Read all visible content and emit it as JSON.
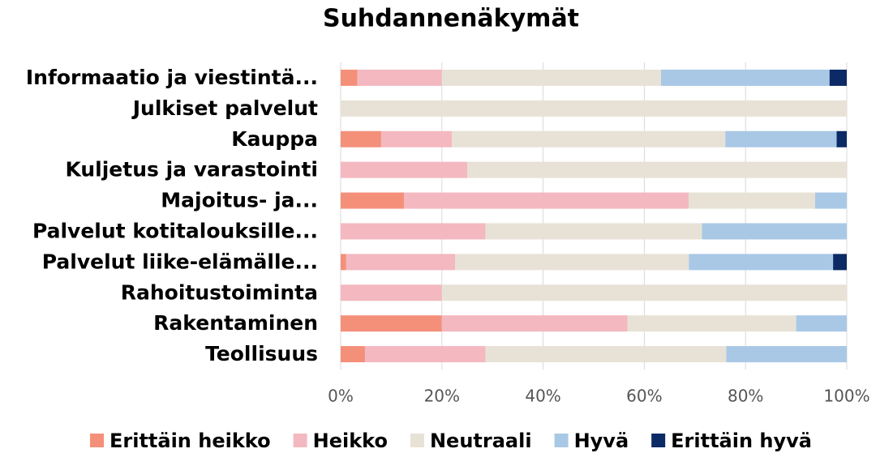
{
  "chart_data": {
    "type": "stacked_barh",
    "title": "Suhdannenäkymät",
    "categories": [
      "Informaatio ja viestintä...",
      "Julkiset palvelut",
      "Kauppa",
      "Kuljetus ja varastointi",
      "Majoitus- ja...",
      "Palvelut kotitalouksille...",
      "Palvelut liike-elämälle...",
      "Rahoitustoiminta",
      "Rakentaminen",
      "Teollisuus"
    ],
    "series": [
      {
        "name": "Erittäin heikko",
        "color": "#f4907a",
        "values": [
          3.3,
          0,
          8,
          0,
          12.5,
          0,
          1.1,
          0,
          20,
          4.8
        ]
      },
      {
        "name": "Heikko",
        "color": "#f4b8c0",
        "values": [
          16.7,
          0,
          14,
          25,
          56.25,
          28.6,
          21.5,
          20,
          36.7,
          23.8
        ]
      },
      {
        "name": "Neutraali",
        "color": "#e8e2d6",
        "values": [
          43.3,
          100,
          54,
          75,
          25,
          42.8,
          46.2,
          80,
          33.3,
          47.6
        ]
      },
      {
        "name": "Hyvä",
        "color": "#a9c8e6",
        "values": [
          33.3,
          0,
          22,
          0,
          6.25,
          28.6,
          28.5,
          0,
          10,
          23.8
        ]
      },
      {
        "name": "Erittäin hyvä",
        "color": "#0c2a66",
        "values": [
          3.4,
          0,
          2,
          0,
          0,
          0,
          2.7,
          0,
          0,
          0
        ]
      }
    ],
    "xlim": [
      0,
      100
    ],
    "xticks": [
      {
        "value": 0,
        "label": "0%"
      },
      {
        "value": 20,
        "label": "20%"
      },
      {
        "value": 40,
        "label": "40%"
      },
      {
        "value": 60,
        "label": "60%"
      },
      {
        "value": 80,
        "label": "80%"
      },
      {
        "value": 100,
        "label": "100%"
      }
    ],
    "grid": true,
    "legend": "bottom"
  }
}
